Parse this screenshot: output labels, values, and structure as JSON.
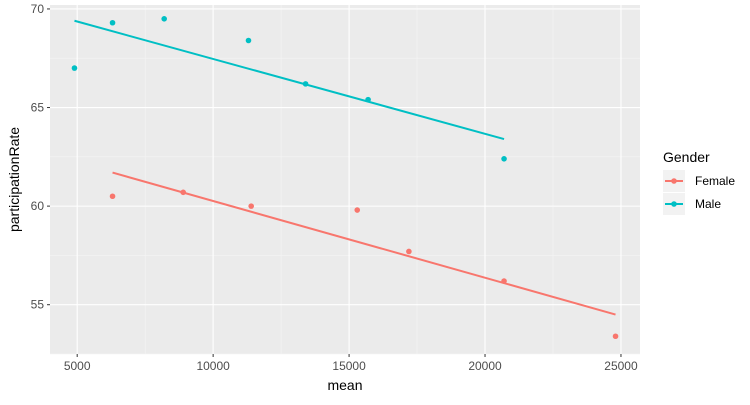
{
  "chart_data": {
    "type": "scatter",
    "title": "",
    "xlabel": "mean",
    "ylabel": "participationRate",
    "xlim": [
      4000,
      25700
    ],
    "ylim": [
      52.5,
      70.2
    ],
    "x_ticks": [
      5000,
      10000,
      15000,
      20000,
      25000
    ],
    "y_ticks": [
      55,
      60,
      65,
      70
    ],
    "grid": true,
    "legend": {
      "title": "Gender",
      "placement": "right"
    },
    "series": [
      {
        "name": "Female",
        "color": "#F8766D",
        "points": [
          {
            "x": 6300,
            "y": 60.5
          },
          {
            "x": 8900,
            "y": 60.7
          },
          {
            "x": 11400,
            "y": 60.0
          },
          {
            "x": 15300,
            "y": 59.8
          },
          {
            "x": 17200,
            "y": 57.7
          },
          {
            "x": 20700,
            "y": 56.2
          },
          {
            "x": 24800,
            "y": 53.4
          }
        ],
        "trend": [
          {
            "x": 6300,
            "y": 61.7
          },
          {
            "x": 24800,
            "y": 54.5
          }
        ]
      },
      {
        "name": "Male",
        "color": "#00BFC4",
        "points": [
          {
            "x": 4900,
            "y": 67.0
          },
          {
            "x": 6300,
            "y": 69.3
          },
          {
            "x": 8200,
            "y": 69.5
          },
          {
            "x": 11300,
            "y": 68.4
          },
          {
            "x": 13400,
            "y": 66.2
          },
          {
            "x": 15700,
            "y": 65.4
          },
          {
            "x": 20700,
            "y": 62.4
          }
        ],
        "trend": [
          {
            "x": 4900,
            "y": 69.4
          },
          {
            "x": 20700,
            "y": 63.4
          }
        ]
      }
    ]
  }
}
